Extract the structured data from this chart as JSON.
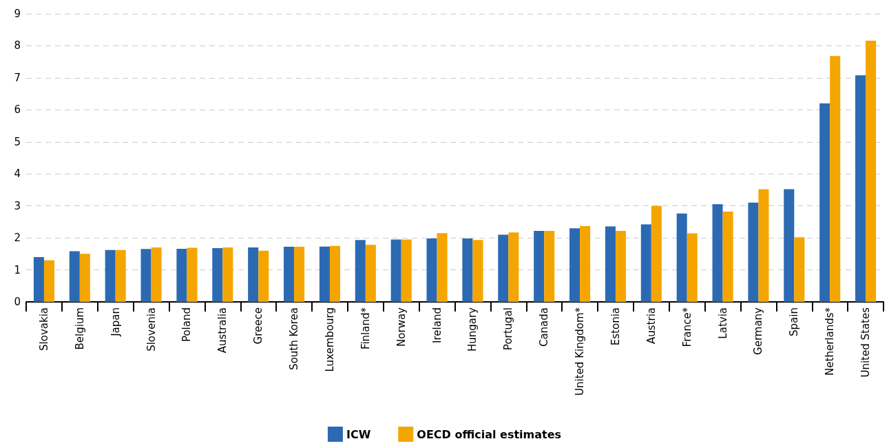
{
  "chart_data": {
    "type": "bar",
    "categories": [
      "Slovakia",
      "Belgium",
      "Japan",
      "Slovenia",
      "Poland",
      "Australia",
      "Greece",
      "South Korea",
      "Luxembourg",
      "Finland*",
      "Norway",
      "Ireland",
      "Hungary",
      "Portugal",
      "Canada",
      "United Kingdom*",
      "Estonia",
      "Austria",
      "France*",
      "Latvia",
      "Germany",
      "Spain",
      "Netherlands*",
      "United States"
    ],
    "series": [
      {
        "name": "ICW",
        "color": "#2b6ab3",
        "values": [
          1.4,
          1.58,
          1.62,
          1.65,
          1.66,
          1.68,
          1.7,
          1.72,
          1.73,
          1.93,
          1.95,
          1.98,
          1.98,
          2.1,
          2.22,
          2.3,
          2.36,
          2.42,
          2.76,
          3.05,
          3.1,
          3.52,
          6.2,
          7.08
        ]
      },
      {
        "name": "OECD official estimates",
        "color": "#f5a500",
        "values": [
          1.3,
          1.5,
          1.62,
          1.7,
          1.69,
          1.7,
          1.6,
          1.72,
          1.75,
          1.78,
          1.95,
          2.15,
          1.93,
          2.17,
          2.22,
          2.37,
          2.22,
          3.0,
          2.14,
          2.82,
          3.52,
          2.02,
          7.68,
          8.16
        ]
      }
    ],
    "ylim": [
      0,
      9
    ],
    "yticks": [
      0,
      1,
      2,
      3,
      4,
      5,
      6,
      7,
      8,
      9
    ],
    "grid": "y",
    "legend": "bottom"
  }
}
